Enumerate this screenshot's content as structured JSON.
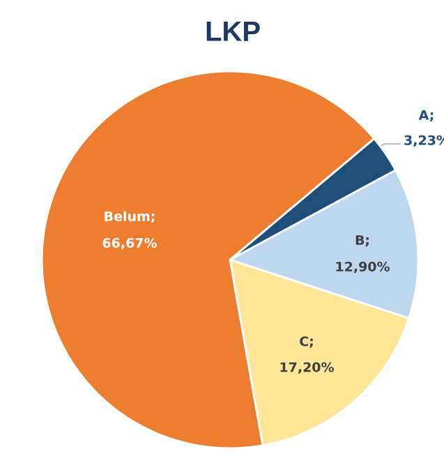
{
  "chart_data": {
    "type": "pie",
    "title": "LKP",
    "categories": [
      "A;",
      "B;",
      "C;",
      "Belum;"
    ],
    "values": [
      3.23,
      12.9,
      17.2,
      66.67
    ],
    "value_labels": [
      "3,23%",
      "12,90%",
      "17,20%",
      "66,67%"
    ],
    "colors": [
      "#1f4e79",
      "#bdd7ee",
      "#ffe699",
      "#ed7d31"
    ]
  }
}
